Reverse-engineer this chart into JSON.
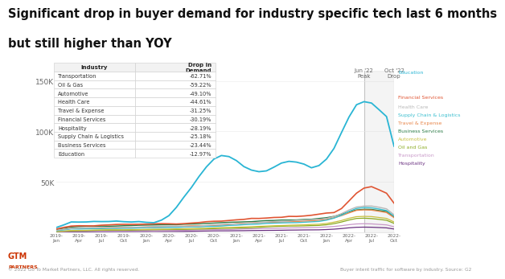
{
  "title_line1": "Significant drop in buyer demand for industry specific tech last 6 months",
  "title_line2": "but still higher than YOY",
  "title_fontsize": 10.5,
  "background_color": "#ffffff",
  "table_rows": [
    [
      "Transportation",
      "-62.71%"
    ],
    [
      "Oil & Gas",
      "-59.22%"
    ],
    [
      "Automotive",
      "-49.10%"
    ],
    [
      "Health Care",
      "-44.61%"
    ],
    [
      "Travel & Expense",
      "-31.25%"
    ],
    [
      "Financial Services",
      "-30.19%"
    ],
    [
      "Hospitality",
      "-28.19%"
    ],
    [
      "Supply Chain & Logistics",
      "-25.18%"
    ],
    [
      "Business Services",
      "-23.44%"
    ],
    [
      "Education",
      "-12.97%"
    ]
  ],
  "footer_left": "© 2022 Go To Market Partners, LLC. All rights reserved.",
  "footer_right": "Buyer intent traffic for software by industry. Source: G2",
  "edu_color": "#29b5d4",
  "fin_color": "#e05533",
  "hc_color": "#b8b8b8",
  "scl_color": "#3bbfcf",
  "te_color": "#e8864a",
  "bs_color": "#2a7a45",
  "auto_color": "#c8c040",
  "og_color": "#8aaa20",
  "trans_color": "#c898c8",
  "hosp_color": "#6a3080",
  "right_labels": [
    [
      "Education",
      "#29b5d4",
      0.755
    ],
    [
      "Financial Services",
      "#e05533",
      0.665
    ],
    [
      "Health Care",
      "#b8b8b8",
      0.63
    ],
    [
      "Supply Chain & Logistics",
      "#3bbfcf",
      0.6
    ],
    [
      "Travel & Expense",
      "#e8864a",
      0.57
    ],
    [
      "Business Services",
      "#2a7a45",
      0.54
    ],
    [
      "Automotive",
      "#c8c040",
      0.51
    ],
    [
      "Oil and Gas",
      "#8aaa20",
      0.48
    ],
    [
      "Transportation",
      "#c898c8",
      0.45
    ],
    [
      "Hospitality",
      "#6a3080",
      0.42
    ]
  ]
}
